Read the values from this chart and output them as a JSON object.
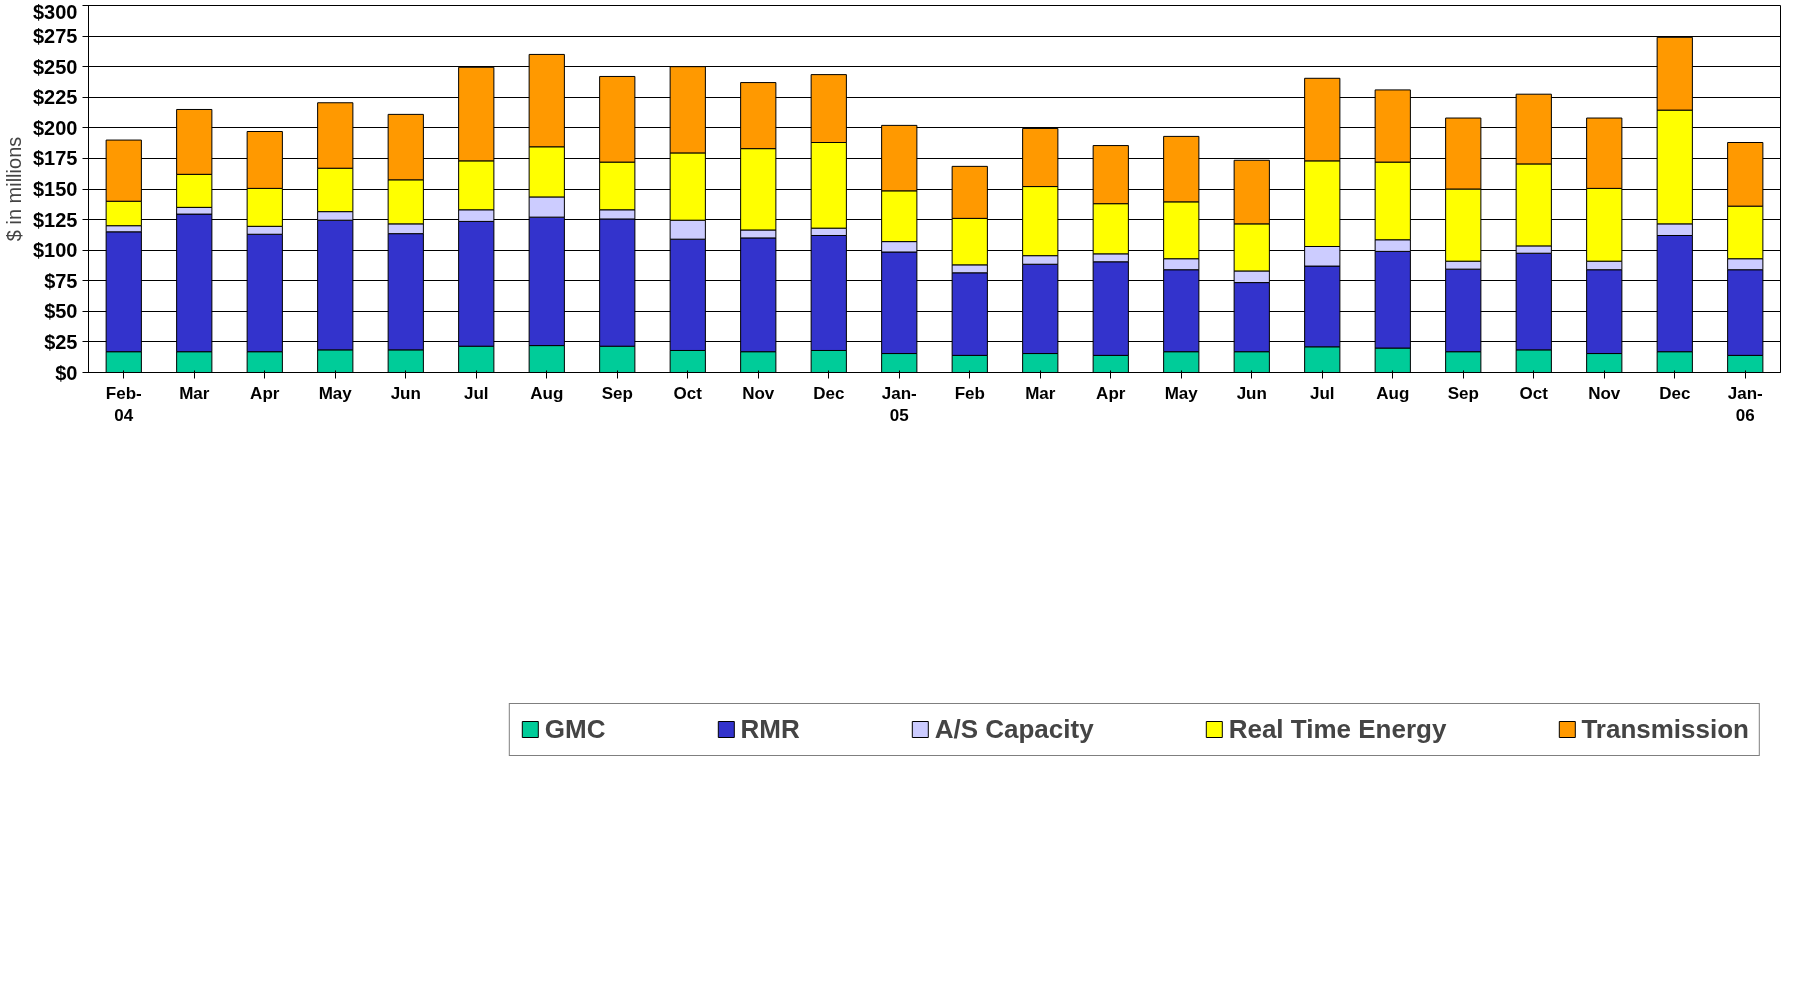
{
  "chart_data": {
    "type": "bar",
    "stacked": true,
    "ylabel": "$ in millions",
    "categories": [
      "Feb-\n04",
      "Mar",
      "Apr",
      "May",
      "Jun",
      "Jul",
      "Aug",
      "Sep",
      "Oct",
      "Nov",
      "Dec",
      "Jan-\n05",
      "Feb",
      "Mar",
      "Apr",
      "May",
      "Jun",
      "Jul",
      "Aug",
      "Sep",
      "Oct",
      "Nov",
      "Dec",
      "Jan-\n06"
    ],
    "series": [
      {
        "name": "GMC",
        "color": "#00cc99",
        "values": [
          17,
          17,
          17,
          18.5,
          18.5,
          21.5,
          22,
          21.5,
          18,
          17,
          18,
          15.5,
          14,
          15.5,
          14,
          17,
          17,
          21,
          20,
          17,
          18.5,
          15.5,
          17,
          14
        ]
      },
      {
        "name": "RMR",
        "color": "#3333cc",
        "values": [
          98,
          112.5,
          96,
          106,
          95,
          102,
          105,
          104,
          91,
          93,
          94,
          83,
          67.5,
          73,
          76.5,
          67,
          56.5,
          66,
          79,
          67.5,
          79,
          68.5,
          95,
          70
        ]
      },
      {
        "name": "A/S Capacity",
        "color": "#ccccff",
        "values": [
          5,
          5.5,
          6.5,
          7,
          8,
          9.5,
          16.5,
          7.5,
          15.5,
          6.5,
          6,
          8.5,
          6.5,
          7,
          6.5,
          9,
          9.5,
          16,
          9.5,
          6.5,
          6,
          7,
          9.5,
          9
        ]
      },
      {
        "name": "Real Time Energy",
        "color": "#ffff00",
        "values": [
          20,
          27,
          31,
          35.5,
          36,
          40,
          41,
          39,
          55,
          66.5,
          70,
          41.5,
          38,
          56.5,
          41,
          46.5,
          38.5,
          70,
          63.5,
          59,
          67,
          59.5,
          93,
          43
        ]
      },
      {
        "name": "Transmission",
        "color": "#ff9900",
        "values": [
          50,
          53,
          46.5,
          53.5,
          53.5,
          76.5,
          75.5,
          70,
          70.5,
          54,
          55.5,
          53.5,
          42.5,
          47.5,
          47.5,
          53.5,
          52,
          67.5,
          59,
          58,
          57,
          57.5,
          59.5,
          52
        ]
      }
    ],
    "ylim": [
      0,
      300
    ],
    "yticks": [
      {
        "value": 0,
        "label": "$0"
      },
      {
        "value": 25,
        "label": "$25"
      },
      {
        "value": 50,
        "label": "$50"
      },
      {
        "value": 75,
        "label": "$75"
      },
      {
        "value": 100,
        "label": "$100"
      },
      {
        "value": 125,
        "label": "$125"
      },
      {
        "value": 150,
        "label": "$150"
      },
      {
        "value": 175,
        "label": "$175"
      },
      {
        "value": 200,
        "label": "$200"
      },
      {
        "value": 225,
        "label": "$225"
      },
      {
        "value": 250,
        "label": "$250"
      },
      {
        "value": 275,
        "label": "$275"
      },
      {
        "value": 300,
        "label": "$300"
      }
    ],
    "grid": "y",
    "legend": "bottom"
  }
}
